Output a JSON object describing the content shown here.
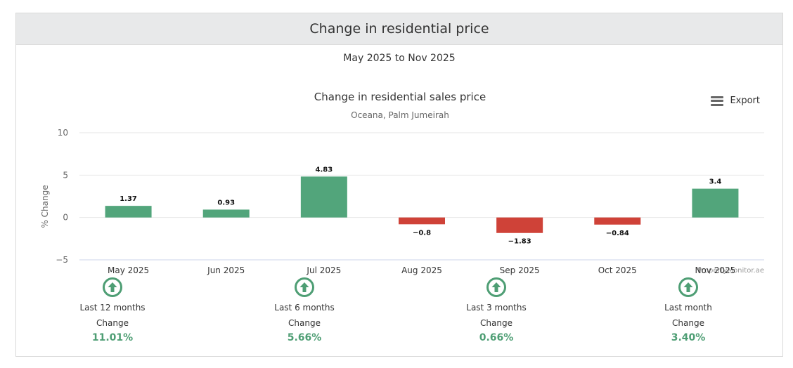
{
  "header": {
    "title": "Change in residential price",
    "subtitle": "May 2025 to Nov 2025"
  },
  "export_label": "Export",
  "colors": {
    "positive": "#52a57b",
    "negative": "#cf4238",
    "stat_value": "#4e9e74"
  },
  "chart_data": {
    "type": "bar",
    "title": "Change in residential sales price",
    "subtitle": "Oceana, Palm Jumeirah",
    "ylabel": "% Change",
    "xlabel": "",
    "categories": [
      "May 2025",
      "Jun 2025",
      "Jul 2025",
      "Aug 2025",
      "Sep 2025",
      "Oct 2025",
      "Nov 2025"
    ],
    "values": [
      1.37,
      0.93,
      4.83,
      -0.8,
      -1.83,
      -0.84,
      3.4
    ],
    "data_labels": [
      "1.37",
      "0.93",
      "4.83",
      "−0.8",
      "−1.83",
      "−0.84",
      "3.4"
    ],
    "ylim": [
      -5,
      10
    ],
    "yticks": [
      10,
      5,
      0,
      -5
    ],
    "ytick_labels": [
      "10",
      "5",
      "0",
      "−5"
    ],
    "grid": true,
    "legend": false,
    "credit": "PropertyMonitor.ae"
  },
  "stats": [
    {
      "period": "Last 12 months",
      "label": "Change",
      "value": "11.01%",
      "icon": "arrow-up-circle-icon"
    },
    {
      "period": "Last 6 months",
      "label": "Change",
      "value": "5.66%",
      "icon": "arrow-up-circle-icon"
    },
    {
      "period": "Last 3 months",
      "label": "Change",
      "value": "0.66%",
      "icon": "arrow-up-circle-icon"
    },
    {
      "period": "Last month",
      "label": "Change",
      "value": "3.40%",
      "icon": "arrow-up-circle-icon"
    }
  ]
}
